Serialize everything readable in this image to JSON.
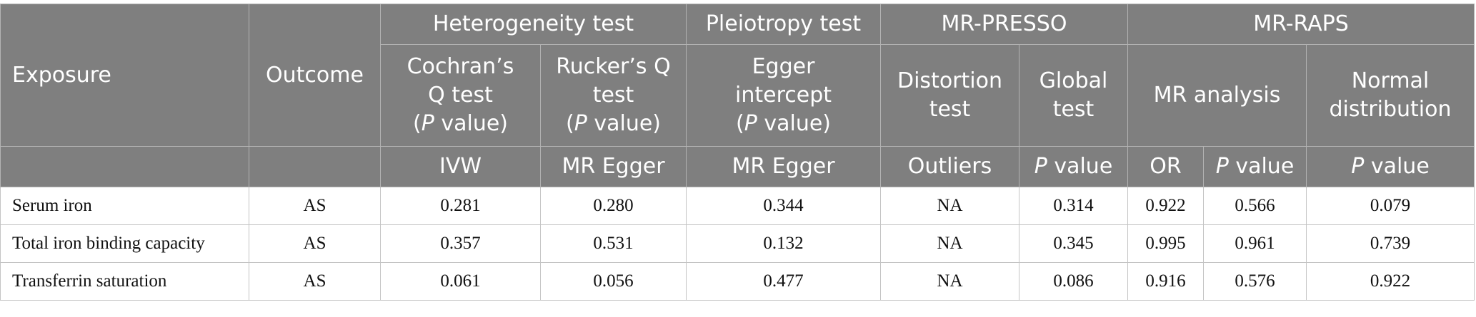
{
  "table": {
    "header": {
      "exposure": "Exposure",
      "outcome": "Outcome",
      "groups": {
        "heterogeneity": "Heterogeneity test",
        "pleiotropy": "Pleiotropy test",
        "mr_presso": "MR-PRESSO",
        "mr_raps": "MR-RAPS"
      },
      "subheaders": {
        "cochran": {
          "l1": "Cochran’s",
          "l2": "Q test",
          "l3_open": "(",
          "l3_italic": "P",
          "l3_rest": " value)"
        },
        "rucker": {
          "l1": "Rucker’s Q",
          "l2": "test",
          "l3_open": "(",
          "l3_italic": "P",
          "l3_rest": " value)"
        },
        "egger": {
          "l1": "Egger",
          "l2": "intercept",
          "l3_open": "(",
          "l3_italic": "P",
          "l3_rest": " value)"
        },
        "distortion": {
          "l1": "Distortion",
          "l2": "test"
        },
        "global": {
          "l1": "Global",
          "l2": "test"
        },
        "mr_analysis": "MR analysis",
        "normal": {
          "l1": "Normal",
          "l2": "distribution"
        }
      },
      "row3": {
        "ivw": "IVW",
        "mr_egger_1": "MR Egger",
        "mr_egger_2": "MR Egger",
        "outliers": "Outliers",
        "p_italic": "P",
        "p_rest": " value",
        "or": "OR"
      }
    },
    "rows": [
      {
        "exposure": "Serum iron",
        "outcome": "AS",
        "ivw": "0.281",
        "egger_q": "0.280",
        "egger_int": "0.344",
        "outliers": "NA",
        "global_p": "0.314",
        "or": "0.922",
        "mr_p": "0.566",
        "normal_p": "0.079"
      },
      {
        "exposure": "Total iron binding capacity",
        "outcome": "AS",
        "ivw": "0.357",
        "egger_q": "0.531",
        "egger_int": "0.132",
        "outliers": "NA",
        "global_p": "0.345",
        "or": "0.995",
        "mr_p": "0.961",
        "normal_p": "0.739"
      },
      {
        "exposure": "Transferrin saturation",
        "outcome": "AS",
        "ivw": "0.061",
        "egger_q": "0.056",
        "egger_int": "0.477",
        "outliers": "NA",
        "global_p": "0.086",
        "or": "0.916",
        "mr_p": "0.576",
        "normal_p": "0.922"
      }
    ]
  }
}
